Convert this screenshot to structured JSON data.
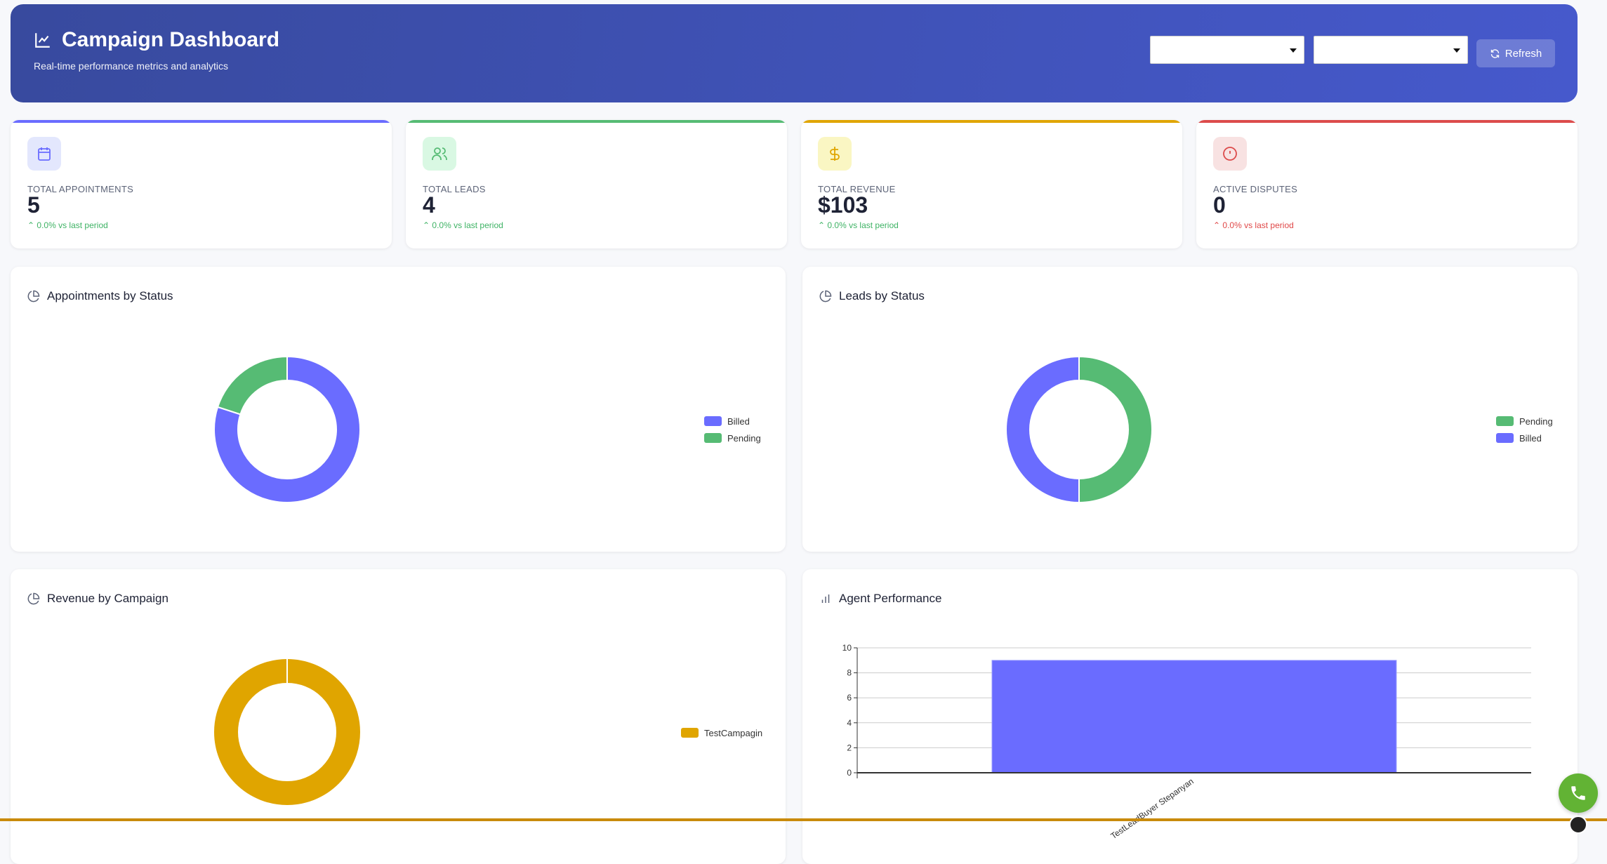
{
  "header": {
    "title": "Campaign Dashboard",
    "subtitle": "Real-time performance metrics and analytics",
    "select1": "",
    "select2": "",
    "refresh_label": "Refresh",
    "icon": "line-chart-icon"
  },
  "stats": [
    {
      "label": "TOTAL APPOINTMENTS",
      "value": "5",
      "change": "0.0% vs last period",
      "color": "#6a6cff",
      "bg": "#e3e7fd",
      "icon": "calendar-icon",
      "trend_color": "#3fb365"
    },
    {
      "label": "TOTAL LEADS",
      "value": "4",
      "change": "0.0% vs last period",
      "color": "#56bb74",
      "bg": "#d9f8e3",
      "icon": "users-icon",
      "trend_color": "#3fb365"
    },
    {
      "label": "TOTAL REVENUE",
      "value": "$103",
      "change": "0.0% vs last period",
      "color": "#e0a500",
      "bg": "#faf6c3",
      "icon": "dollar-icon",
      "trend_color": "#3fb365"
    },
    {
      "label": "ACTIVE DISPUTES",
      "value": "0",
      "change": "0.0% vs last period",
      "color": "#dc4b4b",
      "bg": "#f8e2e2",
      "icon": "alert-circle-icon",
      "trend_color": "#e04848"
    }
  ],
  "panels": {
    "appointments": "Appointments by Status",
    "leads": "Leads by Status",
    "revenue": "Revenue by Campaign",
    "agents": "Agent Performance"
  },
  "chart_data": [
    {
      "type": "pie",
      "title": "Appointments by Status",
      "donut": true,
      "legend": "right",
      "categories": [
        "Billed",
        "Pending"
      ],
      "values": [
        4,
        1
      ],
      "colors": [
        "#6a6cff",
        "#56bb74"
      ]
    },
    {
      "type": "pie",
      "title": "Leads by Status",
      "donut": true,
      "legend": "right",
      "categories": [
        "Pending",
        "Billed"
      ],
      "values": [
        2,
        2
      ],
      "colors": [
        "#56bb74",
        "#6a6cff"
      ]
    },
    {
      "type": "pie",
      "title": "Revenue by Campaign",
      "donut": true,
      "legend": "right",
      "categories": [
        "TestCampagin"
      ],
      "values": [
        103
      ],
      "colors": [
        "#e0a500"
      ]
    },
    {
      "type": "bar",
      "title": "Agent Performance",
      "categories": [
        "TestLeadBuyer Stepanyan"
      ],
      "values": [
        9
      ],
      "ylim": [
        0,
        10
      ],
      "yticks": [
        0,
        2,
        4,
        6,
        8,
        10
      ],
      "grid": true,
      "color": "#6a6cff"
    }
  ]
}
